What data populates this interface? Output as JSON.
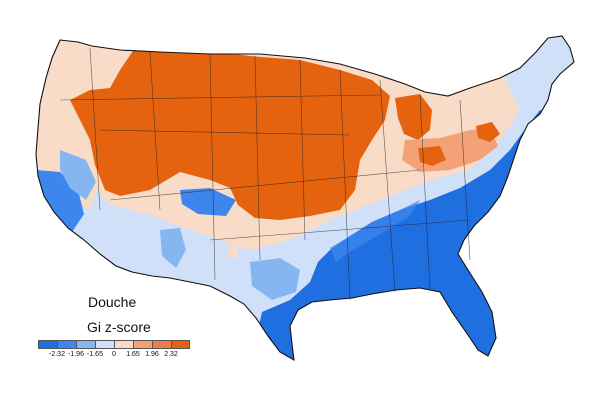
{
  "map": {
    "title": "Douche",
    "subtitle": "Gi z-score",
    "legend": {
      "bins": [
        {
          "color": "#1f6fe0"
        },
        {
          "color": "#3d86ee"
        },
        {
          "color": "#86b6f2"
        },
        {
          "color": "#cfe0f8"
        },
        {
          "color": "#f9dcc8"
        },
        {
          "color": "#f3a278"
        },
        {
          "color": "#eb7d47"
        },
        {
          "color": "#e5620f"
        }
      ],
      "ticks": [
        "-2.32",
        "-1.96",
        "-1.65",
        "0",
        "1.65",
        "1.96",
        "2.32"
      ]
    },
    "region_colors": {
      "hot": "#e5620f",
      "warm": "#f3a278",
      "neutral_warm": "#f9dcc8",
      "neutral_cool": "#cfe0f8",
      "cool": "#86b6f2",
      "cold": "#1f6fe0"
    }
  }
}
